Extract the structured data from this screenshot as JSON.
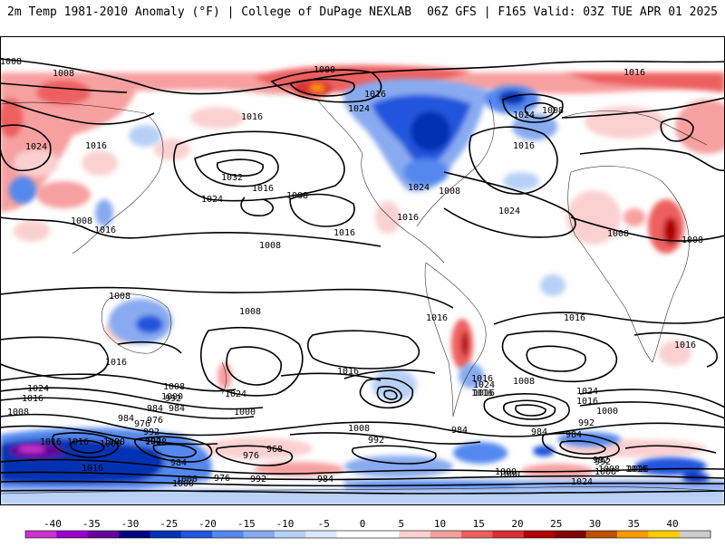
{
  "header": {
    "title_left": "2m Temp 1981-2010 Anomaly (°F) | College of DuPage NEXLAB",
    "title_right": "06Z GFS | F165 Valid: 03Z TUE APR 01 2025"
  },
  "colorbar": {
    "ticks": [
      "-40",
      "-35",
      "-30",
      "-25",
      "-20",
      "-15",
      "-10",
      "-5",
      "0",
      "5",
      "10",
      "15",
      "20",
      "25",
      "30",
      "35",
      "40"
    ],
    "colors": [
      "#cc33cc",
      "#9900cc",
      "#660099",
      "#000080",
      "#0033b3",
      "#2255dd",
      "#5588ee",
      "#88aaf0",
      "#b8d0f6",
      "#dde8fb",
      "#ffffff",
      "#ffffff",
      "#fbd0d0",
      "#f7a0a0",
      "#ee6060",
      "#d93030",
      "#b00000",
      "#800000",
      "#c05000",
      "#ff9900",
      "#ffcc00",
      "#cccccc"
    ]
  },
  "isobar_labels": [
    {
      "text": "1008"
    },
    {
      "text": "1008"
    },
    {
      "text": "1000"
    },
    {
      "text": "1016"
    },
    {
      "text": "1016"
    },
    {
      "text": "1024"
    },
    {
      "text": "1008"
    },
    {
      "text": "1016"
    },
    {
      "text": "1024"
    },
    {
      "text": "1016"
    },
    {
      "text": "1024"
    },
    {
      "text": "1032"
    },
    {
      "text": "1016"
    },
    {
      "text": "1024"
    },
    {
      "text": "1008"
    },
    {
      "text": "1016"
    },
    {
      "text": "1024"
    },
    {
      "text": "1008"
    },
    {
      "text": "1008"
    },
    {
      "text": "1016"
    },
    {
      "text": "1024"
    },
    {
      "text": "1016"
    },
    {
      "text": "1016"
    },
    {
      "text": "1008"
    },
    {
      "text": "1008"
    },
    {
      "text": "1008"
    },
    {
      "text": "1008"
    },
    {
      "text": "1008"
    },
    {
      "text": "1016"
    },
    {
      "text": "1016"
    },
    {
      "text": "1016"
    },
    {
      "text": "1016"
    },
    {
      "text": "1016"
    },
    {
      "text": "1024"
    },
    {
      "text": "1016"
    },
    {
      "text": "1008"
    },
    {
      "text": "1024"
    },
    {
      "text": "1016"
    },
    {
      "text": "992"
    },
    {
      "text": "1000"
    },
    {
      "text": "1024"
    },
    {
      "text": "1016"
    },
    {
      "text": "1008"
    },
    {
      "text": "1000"
    },
    {
      "text": "992"
    },
    {
      "text": "984"
    },
    {
      "text": "1024"
    },
    {
      "text": "1016"
    },
    {
      "text": "1008"
    },
    {
      "text": "1000"
    },
    {
      "text": "976"
    },
    {
      "text": "984"
    },
    {
      "text": "976"
    },
    {
      "text": "992"
    },
    {
      "text": "1000"
    },
    {
      "text": "1016"
    },
    {
      "text": "1008"
    },
    {
      "text": "968"
    },
    {
      "text": "976"
    },
    {
      "text": "984"
    },
    {
      "text": "1008"
    },
    {
      "text": "984"
    },
    {
      "text": "992"
    },
    {
      "text": "984"
    },
    {
      "text": "992"
    },
    {
      "text": "1000"
    },
    {
      "text": "1016"
    },
    {
      "text": "1000"
    },
    {
      "text": "1016"
    },
    {
      "text": "984"
    },
    {
      "text": "992"
    },
    {
      "text": "1016"
    },
    {
      "text": "1016"
    },
    {
      "text": "1008"
    },
    {
      "text": "984"
    },
    {
      "text": "976"
    },
    {
      "text": "992"
    },
    {
      "text": "1000"
    },
    {
      "text": "984"
    },
    {
      "text": "992"
    },
    {
      "text": "1000"
    },
    {
      "text": "1024"
    },
    {
      "text": "1008"
    },
    {
      "text": "1016"
    },
    {
      "text": "1000"
    }
  ]
}
